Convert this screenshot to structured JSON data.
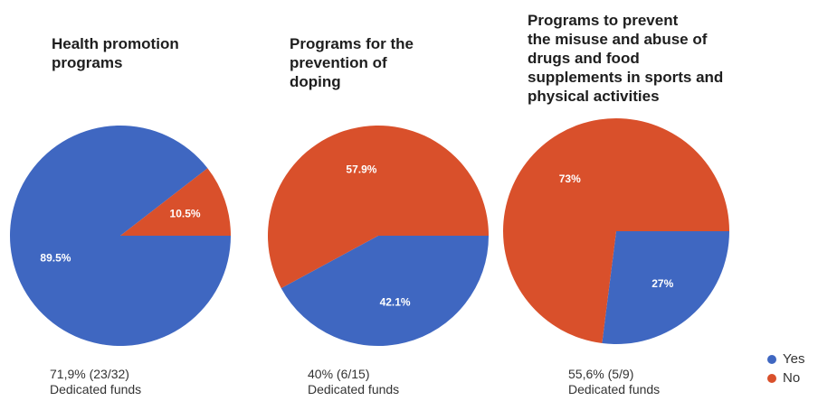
{
  "colors": {
    "yes": "#3f67c1",
    "no": "#d9502b"
  },
  "legend": {
    "yes": "Yes",
    "no": "No"
  },
  "chart_data": [
    {
      "type": "pie",
      "title": "Health promotion\nprograms",
      "categories": [
        "Yes",
        "No"
      ],
      "values": [
        89.5,
        10.5
      ],
      "labels": [
        "89.5%",
        "10.5%"
      ],
      "note_value": "71,9% (23/32)",
      "note_label": "Dedicated funds"
    },
    {
      "type": "pie",
      "title": "Programs for the\nprevention of\ndoping",
      "categories": [
        "Yes",
        "No"
      ],
      "values": [
        42.1,
        57.9
      ],
      "labels": [
        "42.1%",
        "57.9%"
      ],
      "note_value": "40% (6/15)",
      "note_label": "Dedicated funds"
    },
    {
      "type": "pie",
      "title": "Programs  to  prevent\nthe misuse and abuse of\ndrugs and food\nsupplements in sports and\nphysical activities",
      "categories": [
        "Yes",
        "No"
      ],
      "values": [
        27,
        73
      ],
      "labels": [
        "27%",
        "73%"
      ],
      "note_value": "55,6% (5/9)",
      "note_label": "Dedicated funds"
    }
  ]
}
